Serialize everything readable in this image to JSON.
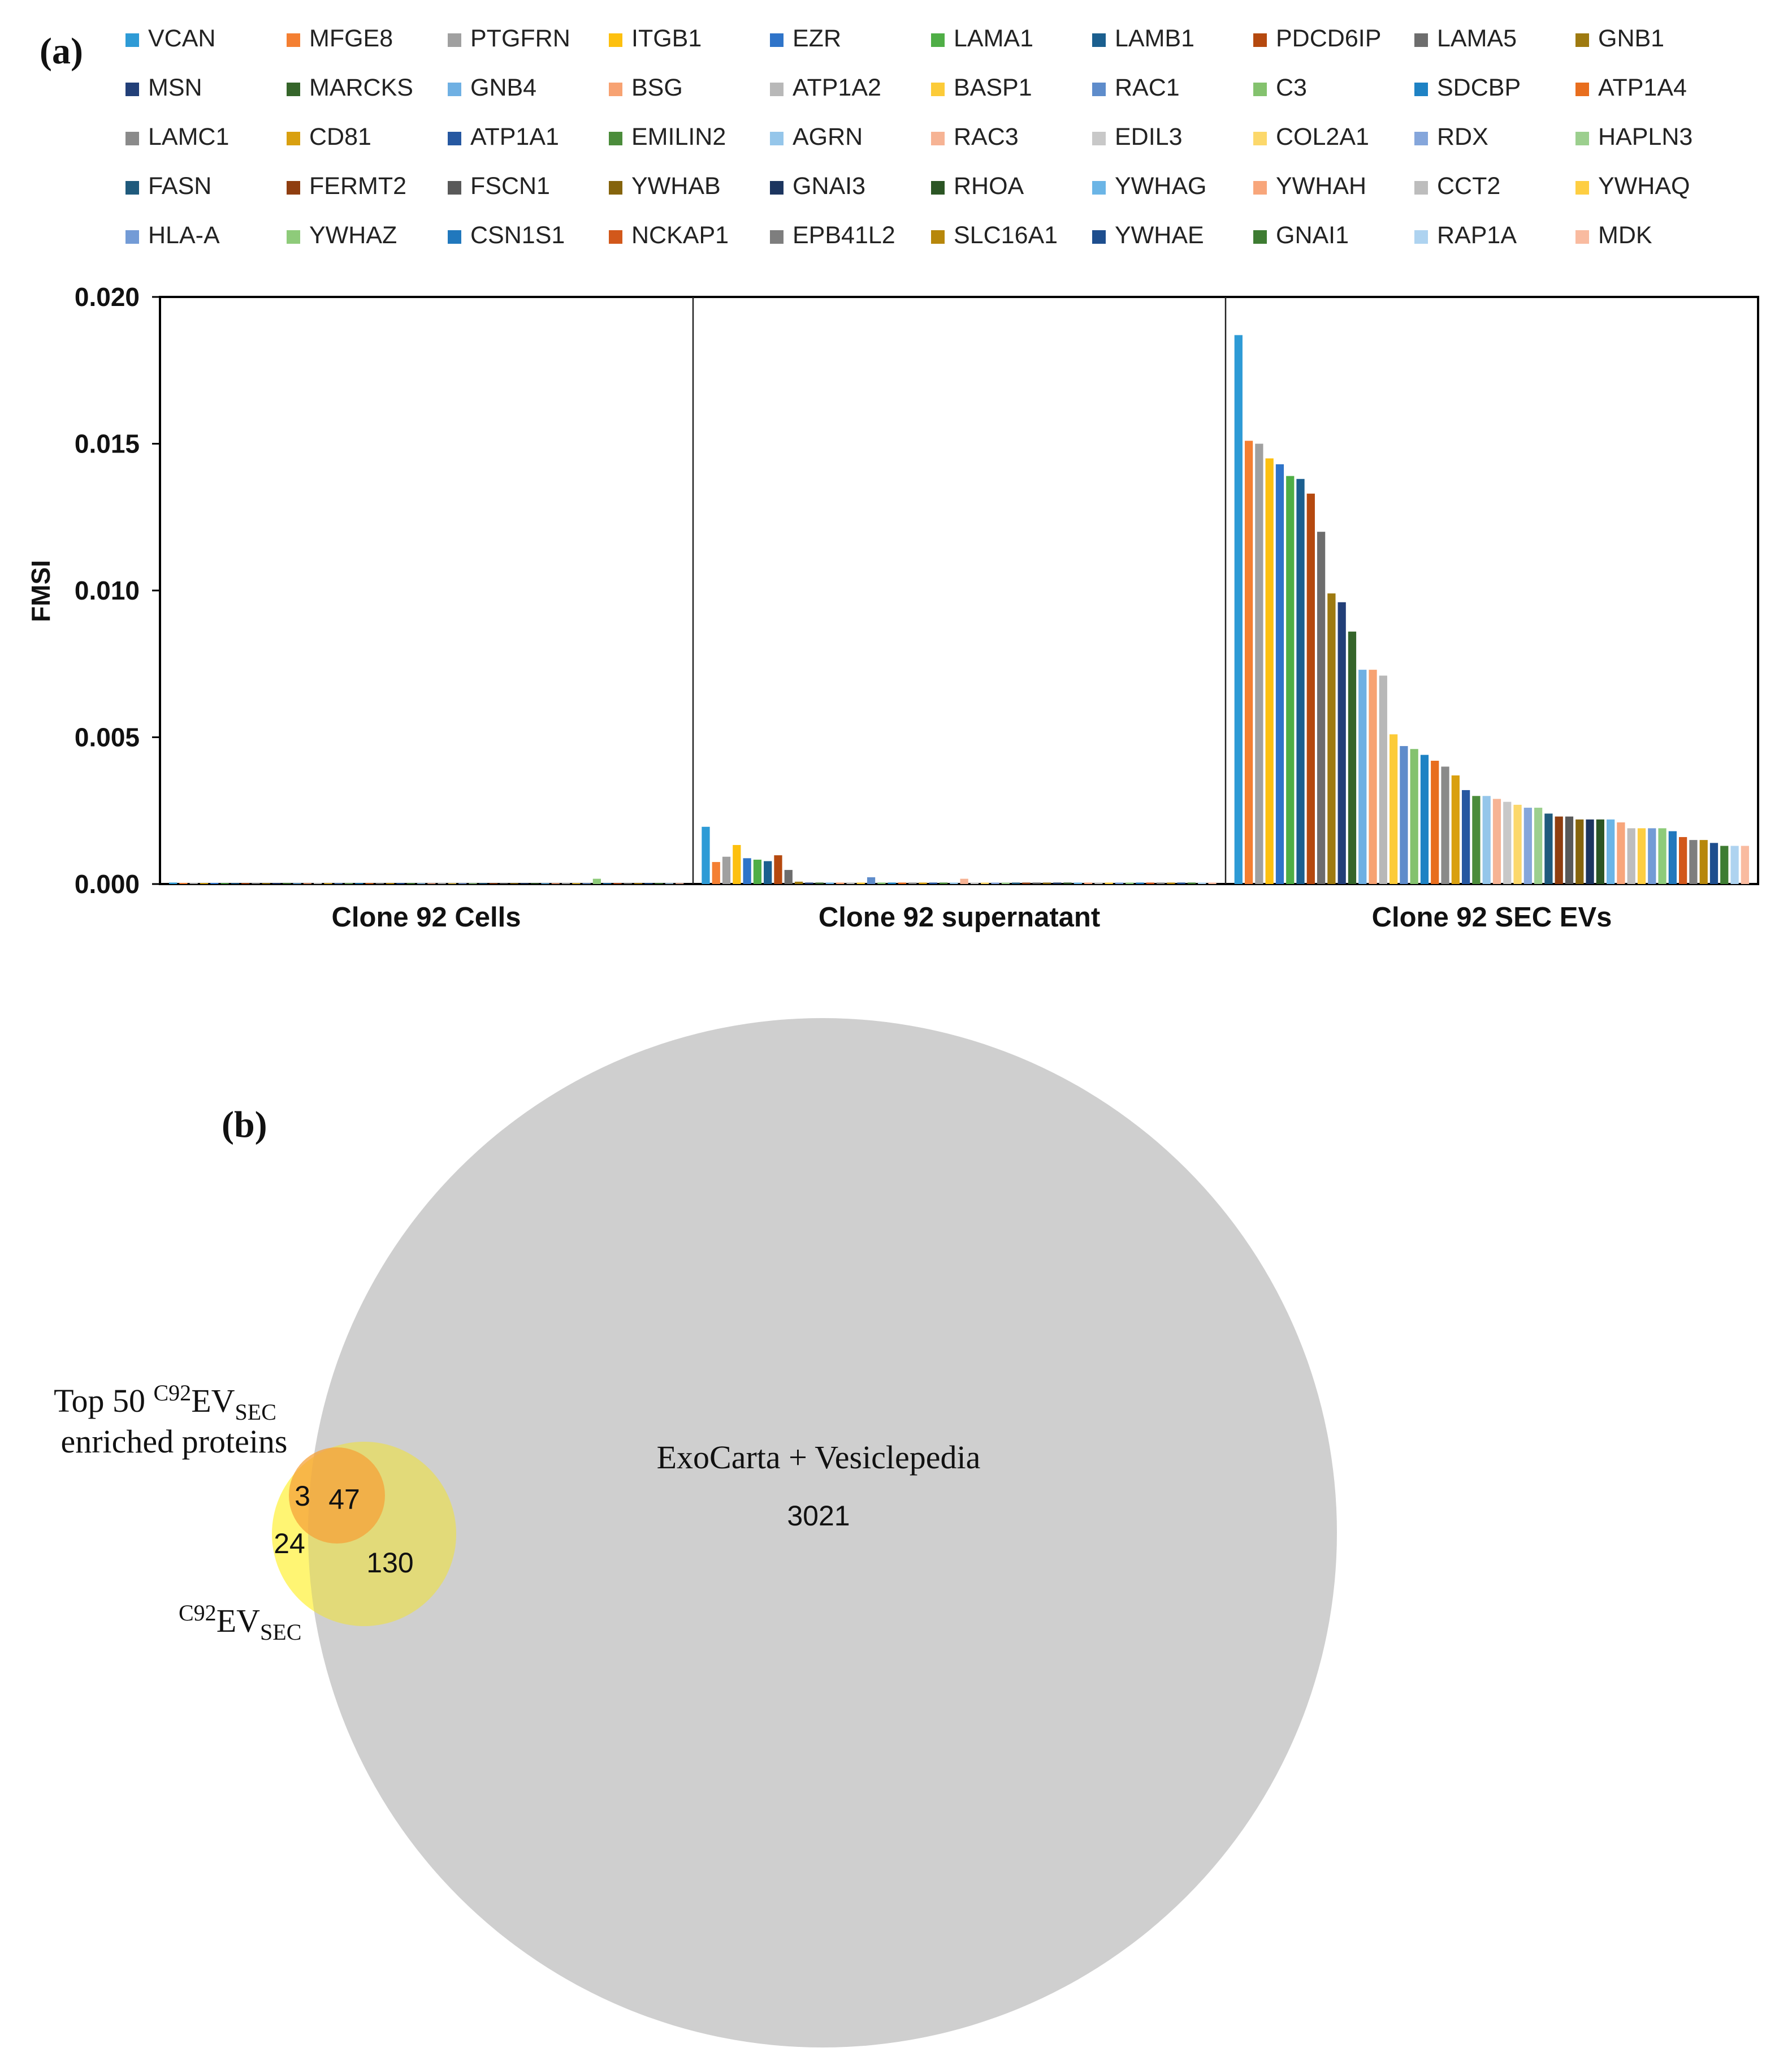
{
  "panel_labels": {
    "a": "(a)",
    "b": "(b)"
  },
  "colors": {
    "palette": [
      "#2E9BD6",
      "#F47F32",
      "#A0A0A0",
      "#FDC00F",
      "#2F74C9",
      "#4FAE46",
      "#1B5F8F",
      "#B5490F",
      "#6D6D6D",
      "#9E7A10",
      "#223F78",
      "#35652A",
      "#6FB0E3",
      "#F7A272",
      "#B8B8B8",
      "#FCCB38",
      "#5E8CCB",
      "#84C26E",
      "#1E82C4",
      "#E86E1E",
      "#8A8A8A",
      "#D9A010",
      "#2658A1",
      "#4B8C3B",
      "#95C6EA",
      "#F6B394",
      "#C8C8C8",
      "#FCD86B",
      "#85A6DB",
      "#9CCF8E",
      "#1F5A7C",
      "#8F3E10",
      "#595959",
      "#85640D",
      "#1C355F",
      "#2B5524",
      "#6BB5E6",
      "#F8A67B",
      "#BDBDBD",
      "#FECE42",
      "#739BD6",
      "#8ECB7A",
      "#2178BD",
      "#D2581B",
      "#7E7E7E",
      "#B7870B",
      "#1E4E8E",
      "#3E7C32",
      "#AED3F0",
      "#F9BBA0"
    ],
    "venn_big": "#CFCFCF",
    "venn_yellow": "#FFF35A",
    "venn_orange": "#F6A23A"
  },
  "chart_data": [
    {
      "type": "bar",
      "title": "",
      "xlabel": "",
      "ylabel": "FMSI",
      "ylim": [
        0,
        0.02
      ],
      "yticks": [
        "0.000",
        "0.005",
        "0.010",
        "0.015",
        "0.020"
      ],
      "ytick_values": [
        0,
        0.005,
        0.01,
        0.015,
        0.02
      ],
      "groups": [
        "Clone 92 Cells",
        "Clone 92 supernatant",
        "Clone 92 SEC EVs"
      ],
      "categories": [
        "VCAN",
        "MFGE8",
        "PTGFRN",
        "ITGB1",
        "EZR",
        "LAMA1",
        "LAMB1",
        "PDCD6IP",
        "LAMA5",
        "GNB1",
        "MSN",
        "MARCKS",
        "GNB4",
        "BSG",
        "ATP1A2",
        "BASP1",
        "RAC1",
        "C3",
        "SDCBP",
        "ATP1A4",
        "LAMC1",
        "CD81",
        "ATP1A1",
        "EMILIN2",
        "AGRN",
        "RAC3",
        "EDIL3",
        "COL2A1",
        "RDX",
        "HAPLN3",
        "FASN",
        "FERMT2",
        "FSCN1",
        "YWHAB",
        "GNAI3",
        "RHOA",
        "YWHAG",
        "YWHAH",
        "CCT2",
        "YWHAQ",
        "HLA-A",
        "YWHAZ",
        "CSN1S1",
        "NCKAP1",
        "EPB41L2",
        "SLC16A1",
        "YWHAE",
        "GNAI1",
        "RAP1A",
        "MDK"
      ],
      "legend": "top",
      "series": [
        {
          "name": "Clone 92 Cells",
          "values": [
            5e-05,
            4e-05,
            4e-05,
            3e-05,
            4e-05,
            3e-05,
            3e-05,
            3e-05,
            4e-05,
            3e-05,
            3e-05,
            4e-05,
            3e-05,
            3e-05,
            4e-05,
            3e-05,
            3e-05,
            3e-05,
            3e-05,
            3e-05,
            3e-05,
            3e-05,
            3e-05,
            3e-05,
            3e-05,
            3e-05,
            3e-05,
            3e-05,
            3e-05,
            3e-05,
            3e-05,
            3e-05,
            3e-05,
            3e-05,
            3e-05,
            3e-05,
            3e-05,
            3e-05,
            3e-05,
            3e-05,
            3e-05,
            0.00018,
            3e-05,
            3e-05,
            3e-05,
            3e-05,
            3e-05,
            3e-05,
            3e-05,
            3e-05
          ]
        },
        {
          "name": "Clone 92 supernatant",
          "values": [
            0.00195,
            0.00075,
            0.00093,
            0.00133,
            0.00088,
            0.00083,
            0.00078,
            0.00098,
            0.00048,
            8e-05,
            5e-05,
            5e-05,
            5e-05,
            5e-05,
            5e-05,
            5e-05,
            0.00023,
            5e-05,
            5e-05,
            5e-05,
            5e-05,
            5e-05,
            5e-05,
            5e-05,
            5e-05,
            0.00018,
            5e-05,
            5e-05,
            5e-05,
            5e-05,
            5e-05,
            5e-05,
            5e-05,
            5e-05,
            5e-05,
            5e-05,
            5e-05,
            5e-05,
            5e-05,
            5e-05,
            5e-05,
            5e-05,
            5e-05,
            5e-05,
            5e-05,
            5e-05,
            5e-05,
            5e-05,
            5e-05,
            5e-05
          ]
        },
        {
          "name": "Clone 92 SEC EVs",
          "values": [
            0.0187,
            0.0151,
            0.015,
            0.0145,
            0.0143,
            0.0139,
            0.0138,
            0.0133,
            0.012,
            0.0099,
            0.0096,
            0.0086,
            0.0073,
            0.0073,
            0.0071,
            0.0051,
            0.0047,
            0.0046,
            0.0044,
            0.0042,
            0.004,
            0.0037,
            0.0032,
            0.003,
            0.003,
            0.0029,
            0.0028,
            0.0027,
            0.0026,
            0.0026,
            0.0024,
            0.0023,
            0.0023,
            0.0022,
            0.0022,
            0.0022,
            0.0022,
            0.0021,
            0.0019,
            0.0019,
            0.0019,
            0.0019,
            0.0018,
            0.0016,
            0.0015,
            0.0015,
            0.0014,
            0.0013,
            0.0013,
            0.0013
          ]
        }
      ]
    },
    {
      "type": "venn",
      "sets": [
        {
          "name": "ExoCarta + Vesiclepedia",
          "only_count": "3021"
        },
        {
          "name_main": "Top 50 ",
          "name_sup": "C92",
          "name_main2": "EV",
          "name_sub": "SEC",
          "name_line2": "enriched proteins",
          "only_count": "3"
        },
        {
          "name_sup": "C92",
          "name_main": "EV",
          "name_sub": "SEC",
          "only_count": "24"
        }
      ],
      "intersections": [
        {
          "sets": [
            "Top 50 enriched",
            "C92 EV SEC",
            "ExoCarta + Vesiclepedia"
          ],
          "count": "47"
        },
        {
          "sets": [
            "C92 EV SEC",
            "ExoCarta + Vesiclepedia"
          ],
          "count": "130"
        }
      ]
    }
  ]
}
